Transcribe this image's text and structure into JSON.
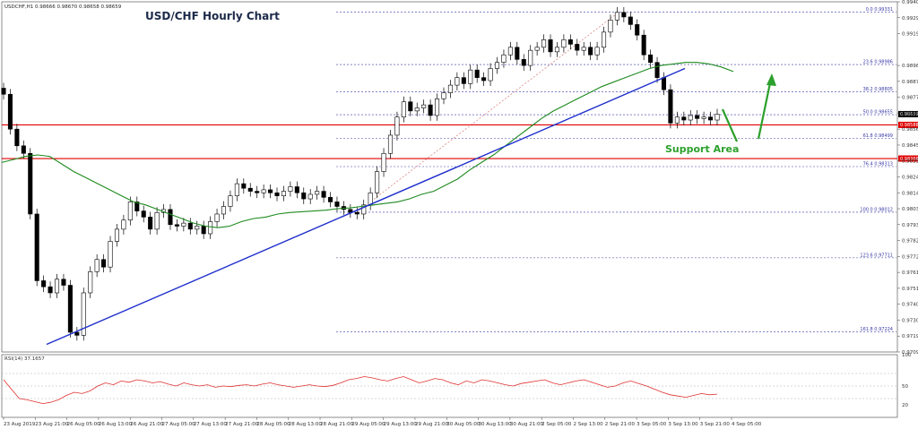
{
  "chart_data": {
    "type": "candlestick",
    "title": "USD/CHF Hourly Chart",
    "symbol_header": "USDCHF,H1  0.98666 0.98670 0.98658 0.98659",
    "ylim": [
      0.9709,
      0.994
    ],
    "price_ticks": [
      "0.99400",
      "0.99295",
      "0.99190",
      "0.98980",
      "0.98875",
      "0.98770",
      "0.98665",
      "0.98560",
      "0.98455",
      "0.98350",
      "0.98245",
      "0.98140",
      "0.98035",
      "0.97930",
      "0.97825",
      "0.97720",
      "0.97615",
      "0.97510",
      "0.97405",
      "0.97300",
      "0.97195",
      "0.97090"
    ],
    "time_labels": [
      "23 Aug 2019",
      "23 Aug 21:00",
      "26 Aug 05:00",
      "26 Aug 13:00",
      "26 Aug 21:00",
      "27 Aug 05:00",
      "27 Aug 13:00",
      "27 Aug 21:00",
      "28 Aug 05:00",
      "28 Aug 13:00",
      "28 Aug 21:00",
      "29 Aug 05:00",
      "29 Aug 13:00",
      "29 Aug 21:00",
      "30 Aug 05:00",
      "30 Aug 13:00",
      "30 Aug 21:00",
      "2 Sep 05:00",
      "2 Sep 13:00",
      "2 Sep 21:00",
      "3 Sep 05:00",
      "3 Sep 13:00",
      "3 Sep 21:00",
      "4 Sep 05:00"
    ],
    "current_price": {
      "label": "0.98659",
      "value": 0.98659
    },
    "horizontal_levels": [
      {
        "label": "0.98588",
        "value": 0.98588,
        "color": "#e00000"
      },
      {
        "label": "0.98366",
        "value": 0.98366,
        "color": "#e00000"
      }
    ],
    "fibonacci": {
      "color": "#3a3aa8",
      "levels": [
        {
          "label": "0.0  0.99331",
          "value": 0.99331
        },
        {
          "label": "23.6  0.98986",
          "value": 0.98986
        },
        {
          "label": "38.2  0.98805",
          "value": 0.98805
        },
        {
          "label": "50.0  0.98655",
          "value": 0.98655
        },
        {
          "label": "61.8  0.98499",
          "value": 0.98499
        },
        {
          "label": "76.4  0.98313",
          "value": 0.98313
        },
        {
          "label": "100.0  0.98012",
          "value": 0.98012
        },
        {
          "label": "123.6  0.97711",
          "value": 0.97711
        },
        {
          "label": "161.8  0.97224",
          "value": 0.97224
        }
      ]
    },
    "trend_line": {
      "color": "#1f2fcc",
      "points": [
        [
          0.0,
          0.9714
        ],
        [
          1.0,
          0.9896
        ]
      ]
    },
    "annotations": {
      "support_label": "Support Area",
      "arrow_color": "#2ca02c"
    },
    "series": [
      {
        "name": "USDCHF H1",
        "close": [
          0.9879,
          0.9856,
          0.9845,
          0.984,
          0.98,
          0.9756,
          0.9752,
          0.9748,
          0.9757,
          0.9753,
          0.9722,
          0.972,
          0.9748,
          0.9762,
          0.977,
          0.9765,
          0.9782,
          0.979,
          0.9796,
          0.9808,
          0.9802,
          0.9798,
          0.979,
          0.9801,
          0.9803,
          0.9793,
          0.9792,
          0.9794,
          0.979,
          0.9792,
          0.9787,
          0.9795,
          0.98,
          0.9805,
          0.9812,
          0.982,
          0.9817,
          0.9815,
          0.9814,
          0.9816,
          0.9814,
          0.9812,
          0.9815,
          0.9818,
          0.9814,
          0.981,
          0.9813,
          0.9815,
          0.9811,
          0.9808,
          0.9805,
          0.9803,
          0.9801,
          0.98,
          0.9806,
          0.9814,
          0.9828,
          0.984,
          0.9852,
          0.9864,
          0.9874,
          0.9868,
          0.987,
          0.9872,
          0.9865,
          0.9876,
          0.988,
          0.9885,
          0.989,
          0.9886,
          0.9895,
          0.989,
          0.9888,
          0.9896,
          0.99,
          0.9905,
          0.991,
          0.9902,
          0.9898,
          0.9908,
          0.991,
          0.9915,
          0.9907,
          0.991,
          0.9915,
          0.9912,
          0.9908,
          0.991,
          0.9905,
          0.991,
          0.992,
          0.9928,
          0.9933,
          0.993,
          0.9925,
          0.9918,
          0.9905,
          0.99,
          0.989,
          0.9882,
          0.986,
          0.9864,
          0.9862,
          0.9865,
          0.9863,
          0.9864,
          0.9862,
          0.98659
        ]
      }
    ],
    "moving_average": {
      "color": "#1e8a1e",
      "values": [
        0.9834,
        0.9836,
        0.9838,
        0.9839,
        0.9838,
        0.9833,
        0.9828,
        0.9824,
        0.982,
        0.9816,
        0.9812,
        0.9808,
        0.9806,
        0.9803,
        0.98,
        0.9797,
        0.9794,
        0.9792,
        0.9791,
        0.9792,
        0.9795,
        0.9797,
        0.9798,
        0.98,
        0.9801,
        0.98015,
        0.9802,
        0.98025,
        0.98035,
        0.9804,
        0.9805,
        0.9806,
        0.9807,
        0.9808,
        0.981,
        0.9813,
        0.9815,
        0.9819,
        0.9823,
        0.9829,
        0.9834,
        0.9839,
        0.9845,
        0.9851,
        0.9857,
        0.9863,
        0.9868,
        0.9872,
        0.9876,
        0.988,
        0.9884,
        0.9887,
        0.989,
        0.9893,
        0.9896,
        0.9898,
        0.9899,
        0.99,
        0.99,
        0.9899,
        0.9897,
        0.9894
      ]
    },
    "rsi": {
      "label": "RSI(14) 37.1657",
      "levels": [
        100,
        70,
        50,
        30,
        0
      ],
      "tick_labels": [
        "100",
        "50",
        "20"
      ],
      "color": "#e03030",
      "values": [
        60,
        45,
        30,
        28,
        25,
        22,
        24,
        28,
        35,
        40,
        38,
        42,
        50,
        55,
        52,
        58,
        56,
        60,
        58,
        55,
        57,
        53,
        50,
        55,
        52,
        50,
        52,
        48,
        50,
        49,
        51,
        52,
        50,
        53,
        55,
        52,
        50,
        48,
        50,
        52,
        50,
        49,
        51,
        55,
        60,
        62,
        65,
        63,
        60,
        58,
        62,
        65,
        60,
        55,
        58,
        62,
        60,
        55,
        52,
        58,
        55,
        60,
        58,
        55,
        52,
        50,
        54,
        56,
        58,
        60,
        55,
        52,
        55,
        58,
        60,
        56,
        52,
        48,
        50,
        55,
        58,
        54,
        50,
        45,
        40,
        36,
        34,
        32,
        35,
        38,
        36,
        37
      ]
    }
  }
}
